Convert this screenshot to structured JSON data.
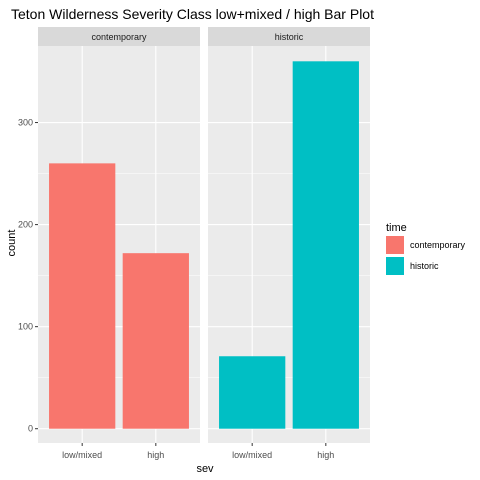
{
  "chart_data": {
    "type": "bar",
    "title": "Teton Wilderness Severity Class low+mixed / high Bar Plot",
    "xlabel": "sev",
    "ylabel": "count",
    "facets": [
      "contemporary",
      "historic"
    ],
    "categories": [
      "low/mixed",
      "high"
    ],
    "ylim": [
      -14,
      375
    ],
    "yticks": [
      0,
      100,
      200,
      300
    ],
    "series": [
      {
        "name": "contemporary",
        "facet": "contemporary",
        "color": "#F8766D",
        "values": [
          260,
          172
        ]
      },
      {
        "name": "historic",
        "facet": "historic",
        "color": "#00BFC4",
        "values": [
          71,
          360
        ]
      }
    ],
    "legend": {
      "title": "time",
      "placement": "right",
      "items": [
        {
          "label": "contemporary",
          "color": "#F8766D"
        },
        {
          "label": "historic",
          "color": "#00BFC4"
        }
      ]
    },
    "grid": true,
    "panel_background": "#EBEBEB",
    "strip_background": "#D9D9D9"
  }
}
